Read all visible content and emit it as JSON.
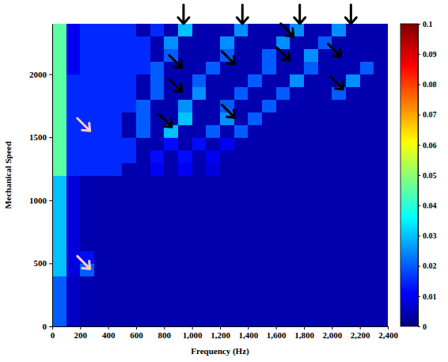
{
  "chart_data": {
    "type": "heatmap",
    "x_label": "Frequency (Hz)",
    "y_label": "Mechanical Speed",
    "xlim": [
      0,
      2400
    ],
    "ylim": [
      0,
      2400
    ],
    "xticks": [
      0,
      200,
      400,
      600,
      800,
      {
        "value": 1000,
        "label": "1,000"
      },
      {
        "value": 1200,
        "label": "1,200"
      },
      {
        "value": 1400,
        "label": "1,400"
      },
      {
        "value": 1600,
        "label": "1,600"
      },
      {
        "value": 1800,
        "label": "1,800"
      },
      {
        "value": 2000,
        "label": "2,000"
      },
      {
        "value": 2200,
        "label": "2,200"
      },
      {
        "value": 2400,
        "label": "2,400"
      }
    ],
    "yticks": [
      0,
      500,
      1000,
      1500,
      2000
    ],
    "x_bins": [
      0,
      100,
      200,
      300,
      400,
      500,
      600,
      700,
      800,
      900,
      1000,
      1100,
      1200,
      1300,
      1400,
      1500,
      1600,
      1700,
      1800,
      1900,
      2000,
      2100,
      2200,
      2300,
      2400
    ],
    "y_bins": [
      0,
      100,
      200,
      300,
      400,
      500,
      600,
      700,
      800,
      900,
      1000,
      1100,
      1200,
      1300,
      1400,
      1500,
      1600,
      1700,
      1800,
      1900,
      2000,
      2100,
      2200,
      2300,
      2400
    ],
    "cells": [
      [
        0.02,
        0.006,
        0.004,
        0.004,
        0.004,
        0.004,
        0.004,
        0.004,
        0.004,
        0.004,
        0.004,
        0.004,
        0.004,
        0.004,
        0.004,
        0.004,
        0.004,
        0.004,
        0.004,
        0.004,
        0.004,
        0.004,
        0.004,
        0.004
      ],
      [
        0.02,
        0.006,
        0.004,
        0.004,
        0.004,
        0.004,
        0.004,
        0.004,
        0.004,
        0.004,
        0.004,
        0.004,
        0.004,
        0.004,
        0.004,
        0.004,
        0.004,
        0.004,
        0.004,
        0.004,
        0.004,
        0.004,
        0.004,
        0.004
      ],
      [
        0.02,
        0.006,
        0.004,
        0.004,
        0.004,
        0.004,
        0.004,
        0.004,
        0.004,
        0.004,
        0.004,
        0.004,
        0.004,
        0.004,
        0.004,
        0.004,
        0.004,
        0.004,
        0.004,
        0.004,
        0.004,
        0.004,
        0.004,
        0.004
      ],
      [
        0.02,
        0.006,
        0.004,
        0.004,
        0.004,
        0.004,
        0.004,
        0.004,
        0.004,
        0.004,
        0.004,
        0.004,
        0.004,
        0.004,
        0.004,
        0.004,
        0.004,
        0.004,
        0.004,
        0.004,
        0.004,
        0.004,
        0.004,
        0.004
      ],
      [
        0.03,
        0.008,
        0.02,
        0.004,
        0.004,
        0.004,
        0.004,
        0.004,
        0.004,
        0.004,
        0.004,
        0.004,
        0.004,
        0.004,
        0.004,
        0.004,
        0.004,
        0.004,
        0.004,
        0.004,
        0.004,
        0.004,
        0.004,
        0.004
      ],
      [
        0.03,
        0.008,
        0.012,
        0.004,
        0.004,
        0.004,
        0.004,
        0.004,
        0.004,
        0.004,
        0.004,
        0.004,
        0.004,
        0.004,
        0.004,
        0.004,
        0.004,
        0.004,
        0.004,
        0.004,
        0.004,
        0.004,
        0.004,
        0.004
      ],
      [
        0.03,
        0.008,
        0.004,
        0.004,
        0.004,
        0.004,
        0.004,
        0.004,
        0.004,
        0.004,
        0.004,
        0.004,
        0.004,
        0.004,
        0.004,
        0.004,
        0.004,
        0.004,
        0.004,
        0.004,
        0.004,
        0.004,
        0.004,
        0.004
      ],
      [
        0.03,
        0.008,
        0.004,
        0.004,
        0.004,
        0.004,
        0.004,
        0.004,
        0.004,
        0.004,
        0.004,
        0.004,
        0.004,
        0.004,
        0.004,
        0.004,
        0.004,
        0.004,
        0.004,
        0.004,
        0.004,
        0.004,
        0.004,
        0.004
      ],
      [
        0.03,
        0.008,
        0.004,
        0.004,
        0.004,
        0.004,
        0.004,
        0.004,
        0.004,
        0.004,
        0.004,
        0.004,
        0.004,
        0.004,
        0.004,
        0.004,
        0.004,
        0.004,
        0.004,
        0.004,
        0.004,
        0.004,
        0.004,
        0.004
      ],
      [
        0.03,
        0.008,
        0.004,
        0.004,
        0.004,
        0.004,
        0.004,
        0.004,
        0.004,
        0.004,
        0.004,
        0.004,
        0.004,
        0.004,
        0.004,
        0.004,
        0.004,
        0.004,
        0.004,
        0.004,
        0.004,
        0.004,
        0.004,
        0.004
      ],
      [
        0.03,
        0.008,
        0.004,
        0.004,
        0.004,
        0.004,
        0.004,
        0.004,
        0.004,
        0.004,
        0.004,
        0.004,
        0.004,
        0.004,
        0.004,
        0.004,
        0.004,
        0.004,
        0.004,
        0.004,
        0.004,
        0.004,
        0.004,
        0.004
      ],
      [
        0.03,
        0.008,
        0.004,
        0.004,
        0.004,
        0.004,
        0.004,
        0.004,
        0.004,
        0.004,
        0.004,
        0.004,
        0.004,
        0.004,
        0.004,
        0.004,
        0.004,
        0.004,
        0.004,
        0.004,
        0.004,
        0.004,
        0.004,
        0.004
      ],
      [
        0.045,
        0.015,
        0.015,
        0.015,
        0.015,
        0.004,
        0.004,
        0.01,
        0.004,
        0.01,
        0.004,
        0.008,
        0.004,
        0.004,
        0.004,
        0.004,
        0.004,
        0.004,
        0.004,
        0.004,
        0.004,
        0.004,
        0.004,
        0.004
      ],
      [
        0.045,
        0.015,
        0.015,
        0.015,
        0.015,
        0.015,
        0.004,
        0.012,
        0.004,
        0.012,
        0.004,
        0.01,
        0.004,
        0.004,
        0.004,
        0.004,
        0.004,
        0.004,
        0.004,
        0.004,
        0.004,
        0.004,
        0.004,
        0.004
      ],
      [
        0.045,
        0.015,
        0.015,
        0.015,
        0.015,
        0.015,
        0.004,
        0.004,
        0.012,
        0.004,
        0.012,
        0.004,
        0.01,
        0.004,
        0.004,
        0.004,
        0.004,
        0.004,
        0.004,
        0.004,
        0.004,
        0.004,
        0.004,
        0.004
      ],
      [
        0.045,
        0.015,
        0.015,
        0.015,
        0.015,
        0.004,
        0.02,
        0.004,
        0.03,
        0.004,
        0.004,
        0.02,
        0.004,
        0.02,
        0.004,
        0.004,
        0.004,
        0.004,
        0.004,
        0.004,
        0.004,
        0.004,
        0.004,
        0.004
      ],
      [
        0.045,
        0.015,
        0.015,
        0.015,
        0.015,
        0.004,
        0.02,
        0.004,
        0.004,
        0.03,
        0.004,
        0.004,
        0.025,
        0.004,
        0.02,
        0.004,
        0.004,
        0.004,
        0.004,
        0.004,
        0.004,
        0.004,
        0.004,
        0.004
      ],
      [
        0.045,
        0.015,
        0.015,
        0.015,
        0.015,
        0.015,
        0.02,
        0.004,
        0.004,
        0.025,
        0.004,
        0.004,
        0.02,
        0.004,
        0.004,
        0.02,
        0.004,
        0.004,
        0.004,
        0.004,
        0.004,
        0.004,
        0.004,
        0.004
      ],
      [
        0.045,
        0.015,
        0.015,
        0.015,
        0.015,
        0.015,
        0.004,
        0.02,
        0.004,
        0.004,
        0.025,
        0.004,
        0.004,
        0.02,
        0.004,
        0.004,
        0.02,
        0.004,
        0.004,
        0.004,
        0.02,
        0.004,
        0.004,
        0.004
      ],
      [
        0.045,
        0.015,
        0.015,
        0.015,
        0.015,
        0.015,
        0.004,
        0.02,
        0.004,
        0.004,
        0.02,
        0.004,
        0.004,
        0.004,
        0.02,
        0.004,
        0.004,
        0.025,
        0.004,
        0.004,
        0.004,
        0.025,
        0.004,
        0.004
      ],
      [
        0.045,
        0.01,
        0.015,
        0.015,
        0.015,
        0.015,
        0.015,
        0.02,
        0.004,
        0.004,
        0.004,
        0.02,
        0.004,
        0.004,
        0.004,
        0.02,
        0.004,
        0.004,
        0.02,
        0.004,
        0.004,
        0.004,
        0.02,
        0.004
      ],
      [
        0.045,
        0.01,
        0.015,
        0.015,
        0.015,
        0.015,
        0.015,
        0.004,
        0.02,
        0.004,
        0.004,
        0.004,
        0.02,
        0.004,
        0.004,
        0.02,
        0.004,
        0.004,
        0.025,
        0.004,
        0.004,
        0.004,
        0.004,
        0.004
      ],
      [
        0.045,
        0.01,
        0.015,
        0.015,
        0.015,
        0.015,
        0.015,
        0.004,
        0.025,
        0.004,
        0.004,
        0.004,
        0.025,
        0.004,
        0.004,
        0.004,
        0.025,
        0.004,
        0.004,
        0.02,
        0.004,
        0.004,
        0.004,
        0.004
      ],
      [
        0.045,
        0.01,
        0.015,
        0.015,
        0.015,
        0.015,
        0.004,
        0.015,
        0.004,
        0.03,
        0.004,
        0.004,
        0.004,
        0.025,
        0.004,
        0.004,
        0.004,
        0.025,
        0.004,
        0.004,
        0.025,
        0.004,
        0.004,
        0.004
      ]
    ],
    "colorbar_range": [
      0,
      0.1
    ],
    "colorbar_ticks": [
      0,
      0.01,
      0.02,
      0.03,
      0.04,
      0.05,
      0.06,
      0.07,
      0.08,
      0.09,
      0.1
    ]
  }
}
